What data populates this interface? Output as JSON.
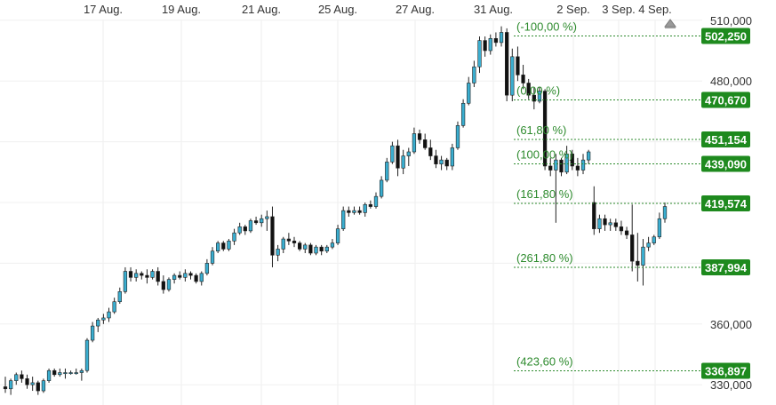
{
  "chart_data": {
    "type": "candlestick",
    "x_ticks": [
      "17 Aug.",
      "19 Aug.",
      "21 Aug.",
      "25 Aug.",
      "27 Aug.",
      "31 Aug.",
      "2 Sep.",
      "3 Sep.",
      "4 Sep."
    ],
    "y_ticks": [
      "510,000",
      "480,000",
      "360,000",
      "330,000"
    ],
    "ylim": [
      320000,
      520000
    ],
    "grid": true,
    "colors": {
      "up": "#3aaed0",
      "down": "#111111",
      "fib_line": "#2e8b2e",
      "fib_badge": "#1e8a1e"
    },
    "fib_levels": [
      {
        "label": "(-100,00 %)",
        "value_label": "502,250",
        "value": 502250
      },
      {
        "label": "(0,00 %)",
        "value_label": "470,670",
        "value": 470670
      },
      {
        "label": "(61,80 %)",
        "value_label": "451,154",
        "value": 451154
      },
      {
        "label": "(100,00 %)",
        "value_label": "439,090",
        "value": 439090
      },
      {
        "label": "(161,80 %)",
        "value_label": "419,574",
        "value": 419574
      },
      {
        "label": "(261,80 %)",
        "value_label": "387,994",
        "value": 387994
      },
      {
        "label": "(423,60 %)",
        "value_label": "336,897",
        "value": 336897
      }
    ],
    "candles": [
      [
        329000,
        334000,
        326000,
        328000
      ],
      [
        328000,
        333000,
        325000,
        332000
      ],
      [
        332000,
        336000,
        330000,
        335000
      ],
      [
        335000,
        337000,
        331000,
        333000
      ],
      [
        333000,
        335000,
        328000,
        330000
      ],
      [
        330000,
        334000,
        327000,
        331000
      ],
      [
        331000,
        332000,
        325000,
        327000
      ],
      [
        327000,
        333000,
        326000,
        332000
      ],
      [
        332000,
        338000,
        331000,
        337000
      ],
      [
        337000,
        338000,
        334000,
        335000
      ],
      [
        335000,
        338000,
        334000,
        336000
      ],
      [
        336000,
        338000,
        333000,
        336000
      ],
      [
        336000,
        337000,
        335000,
        336000
      ],
      [
        336000,
        338000,
        335000,
        336000
      ],
      [
        336000,
        338000,
        332000,
        337000
      ],
      [
        337000,
        353000,
        336000,
        352000
      ],
      [
        352000,
        361000,
        351000,
        359000
      ],
      [
        359000,
        363000,
        356000,
        362000
      ],
      [
        362000,
        365000,
        360000,
        363000
      ],
      [
        363000,
        368000,
        361000,
        366000
      ],
      [
        366000,
        373000,
        365000,
        371000
      ],
      [
        371000,
        378000,
        370000,
        376000
      ],
      [
        376000,
        388000,
        375000,
        386000
      ],
      [
        386000,
        388000,
        381000,
        383000
      ],
      [
        383000,
        387000,
        381000,
        385000
      ],
      [
        385000,
        386000,
        382000,
        384000
      ],
      [
        384000,
        387000,
        380000,
        383000
      ],
      [
        383000,
        387000,
        382000,
        386000
      ],
      [
        386000,
        388000,
        379000,
        381000
      ],
      [
        381000,
        384000,
        375000,
        377000
      ],
      [
        377000,
        383000,
        376000,
        382000
      ],
      [
        382000,
        385000,
        380000,
        384000
      ],
      [
        384000,
        386000,
        382000,
        383000
      ],
      [
        383000,
        387000,
        381000,
        385000
      ],
      [
        385000,
        386000,
        382000,
        384000
      ],
      [
        384000,
        385000,
        380000,
        381000
      ],
      [
        381000,
        386000,
        379000,
        385000
      ],
      [
        385000,
        392000,
        384000,
        390000
      ],
      [
        390000,
        398000,
        389000,
        396000
      ],
      [
        396000,
        401000,
        395000,
        400000
      ],
      [
        400000,
        401000,
        396000,
        397000
      ],
      [
        397000,
        402000,
        396000,
        401000
      ],
      [
        401000,
        407000,
        399000,
        405000
      ],
      [
        405000,
        410000,
        404000,
        408000
      ],
      [
        408000,
        409000,
        404000,
        406000
      ],
      [
        406000,
        412000,
        405000,
        411000
      ],
      [
        411000,
        413000,
        409000,
        410000
      ],
      [
        410000,
        414000,
        408000,
        412000
      ],
      [
        412000,
        416000,
        406000,
        413000
      ],
      [
        413000,
        418000,
        388000,
        394000
      ],
      [
        394000,
        399000,
        391000,
        397000
      ],
      [
        397000,
        403000,
        395000,
        402000
      ],
      [
        402000,
        405000,
        399000,
        401000
      ],
      [
        401000,
        403000,
        398000,
        400000
      ],
      [
        400000,
        401000,
        396000,
        397000
      ],
      [
        397000,
        400000,
        395000,
        399000
      ],
      [
        399000,
        400000,
        394000,
        395000
      ],
      [
        395000,
        399000,
        394000,
        398000
      ],
      [
        398000,
        399000,
        394000,
        396000
      ],
      [
        396000,
        399000,
        395000,
        398000
      ],
      [
        398000,
        402000,
        397000,
        400000
      ],
      [
        400000,
        409000,
        399000,
        407000
      ],
      [
        407000,
        418000,
        406000,
        416000
      ],
      [
        416000,
        418000,
        413000,
        415000
      ],
      [
        415000,
        418000,
        414000,
        416000
      ],
      [
        416000,
        418000,
        414000,
        415000
      ],
      [
        415000,
        420000,
        413000,
        419000
      ],
      [
        419000,
        421000,
        417000,
        418000
      ],
      [
        418000,
        425000,
        417000,
        423000
      ],
      [
        423000,
        433000,
        422000,
        431000
      ],
      [
        431000,
        442000,
        430000,
        440000
      ],
      [
        440000,
        450000,
        439000,
        448000
      ],
      [
        448000,
        451000,
        433000,
        437000
      ],
      [
        437000,
        446000,
        434000,
        443000
      ],
      [
        443000,
        447000,
        438000,
        445000
      ],
      [
        445000,
        457000,
        444000,
        454000
      ],
      [
        454000,
        456000,
        449000,
        451000
      ],
      [
        451000,
        454000,
        446000,
        447000
      ],
      [
        447000,
        451000,
        441000,
        443000
      ],
      [
        443000,
        446000,
        437000,
        439000
      ],
      [
        439000,
        443000,
        436000,
        441000
      ],
      [
        441000,
        442000,
        436000,
        438000
      ],
      [
        438000,
        449000,
        436000,
        447000
      ],
      [
        447000,
        460000,
        446000,
        458000
      ],
      [
        458000,
        471000,
        457000,
        469000
      ],
      [
        469000,
        482000,
        468000,
        479000
      ],
      [
        479000,
        490000,
        477000,
        487000
      ],
      [
        487000,
        502000,
        484000,
        500000
      ],
      [
        500000,
        502000,
        492000,
        495000
      ],
      [
        495000,
        503000,
        493000,
        501000
      ],
      [
        501000,
        504000,
        497000,
        499000
      ],
      [
        499000,
        507000,
        497000,
        504000
      ],
      [
        504000,
        506000,
        470000,
        473000
      ],
      [
        473000,
        496000,
        470000,
        492000
      ],
      [
        492000,
        497000,
        480000,
        483000
      ],
      [
        483000,
        488000,
        476000,
        479000
      ],
      [
        479000,
        481000,
        471000,
        473000
      ],
      [
        473000,
        477000,
        466000,
        470000
      ],
      [
        470000,
        477000,
        469000,
        475000
      ],
      [
        475000,
        476000,
        436000,
        438000
      ],
      [
        438000,
        442000,
        433000,
        436000
      ],
      [
        436000,
        444000,
        410000,
        441000
      ],
      [
        441000,
        442000,
        433000,
        435000
      ],
      [
        435000,
        448000,
        434000,
        444000
      ],
      [
        444000,
        446000,
        436000,
        438000
      ],
      [
        438000,
        442000,
        433000,
        436000
      ],
      [
        436000,
        444000,
        434000,
        441000
      ],
      [
        441000,
        446000,
        439000,
        445000
      ],
      [
        420000,
        428000,
        404000,
        407000
      ],
      [
        407000,
        414000,
        405000,
        412000
      ],
      [
        412000,
        414000,
        406000,
        409000
      ],
      [
        409000,
        412000,
        406000,
        410000
      ],
      [
        410000,
        412000,
        406000,
        408000
      ],
      [
        408000,
        411000,
        404000,
        406000
      ],
      [
        406000,
        408000,
        402000,
        404000
      ],
      [
        404000,
        419000,
        386000,
        391000
      ],
      [
        391000,
        405000,
        381000,
        389000
      ],
      [
        389000,
        402000,
        379000,
        398000
      ],
      [
        398000,
        403000,
        396000,
        400000
      ],
      [
        400000,
        404000,
        399000,
        403000
      ],
      [
        403000,
        415000,
        402000,
        412000
      ],
      [
        412000,
        420000,
        410000,
        418000
      ]
    ]
  }
}
